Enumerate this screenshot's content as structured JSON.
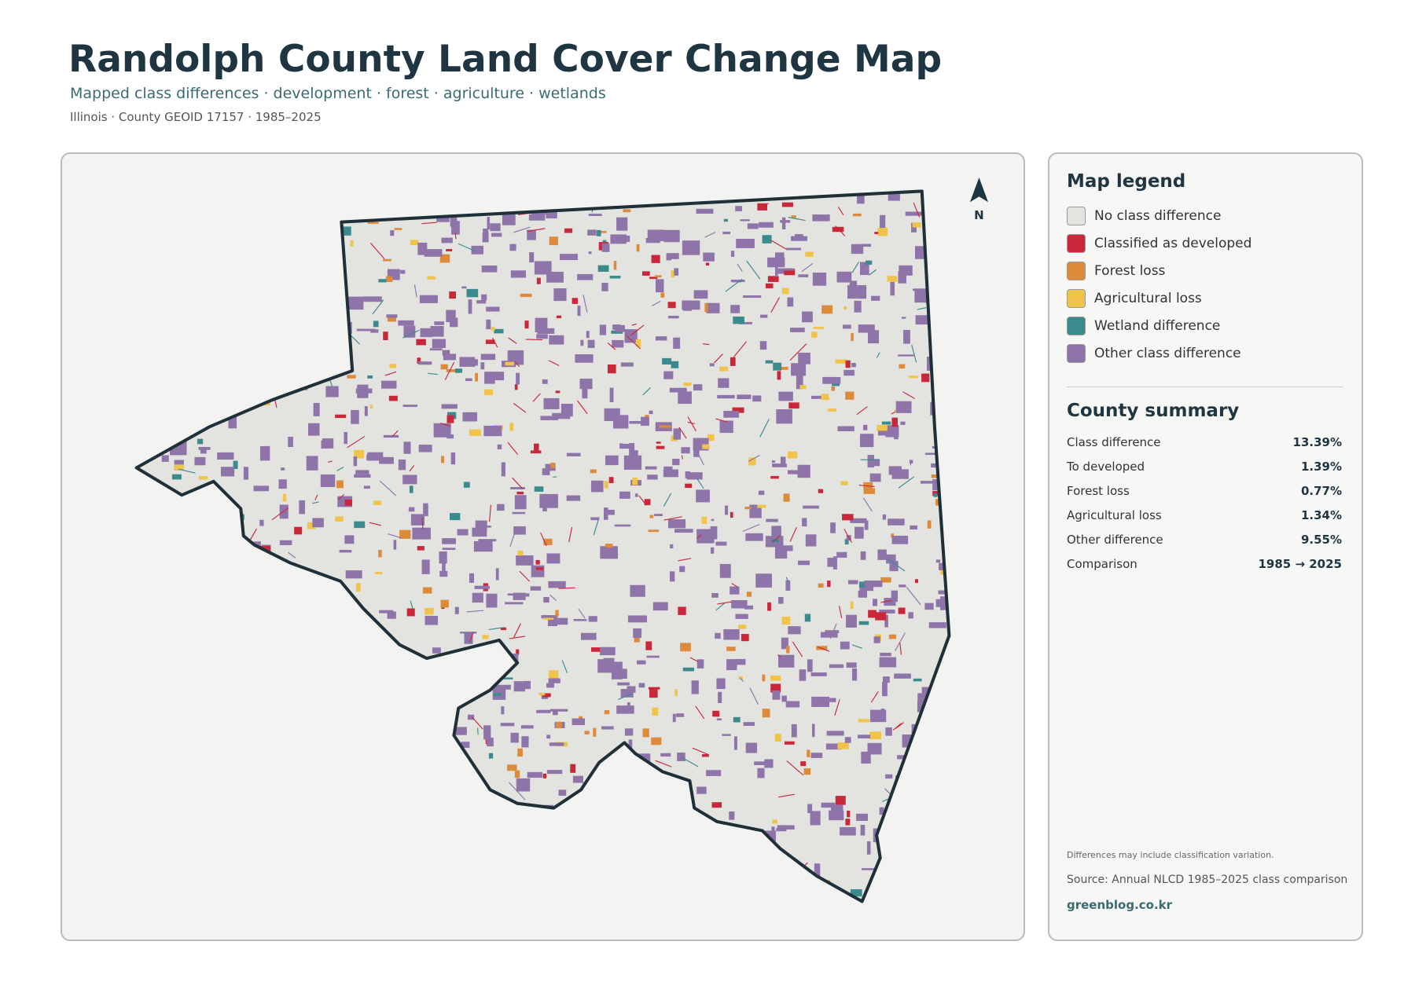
{
  "header": {
    "title": "Randolph County Land Cover Change Map",
    "subtitle": "Mapped class differences · development · forest · agriculture · wetlands",
    "meta": "Illinois · County GEOID 17157 · 1985–2025"
  },
  "map": {
    "north_label": "N"
  },
  "legend": {
    "title": "Map legend",
    "items": [
      {
        "label": "No class difference",
        "color": "#e3e3e0"
      },
      {
        "label": "Classified as developed",
        "color": "#c8283a"
      },
      {
        "label": "Forest loss",
        "color": "#dd8a3a"
      },
      {
        "label": "Agricultural loss",
        "color": "#f0c44a"
      },
      {
        "label": "Wetland difference",
        "color": "#3a8a8e"
      },
      {
        "label": "Other class difference",
        "color": "#8e74a8"
      }
    ]
  },
  "summary": {
    "title": "County summary",
    "rows": [
      {
        "label": "Class difference",
        "value": "13.39%"
      },
      {
        "label": "To developed",
        "value": "1.39%"
      },
      {
        "label": "Forest loss",
        "value": "0.77%"
      },
      {
        "label": "Agricultural loss",
        "value": "1.34%"
      },
      {
        "label": "Other difference",
        "value": "9.55%"
      },
      {
        "label": "Comparison",
        "value": "1985 → 2025"
      }
    ]
  },
  "footer": {
    "note": "Differences may include classification variation.",
    "source": "Source: Annual NLCD 1985–2025 class comparison",
    "site": "greenblog.co.kr"
  }
}
